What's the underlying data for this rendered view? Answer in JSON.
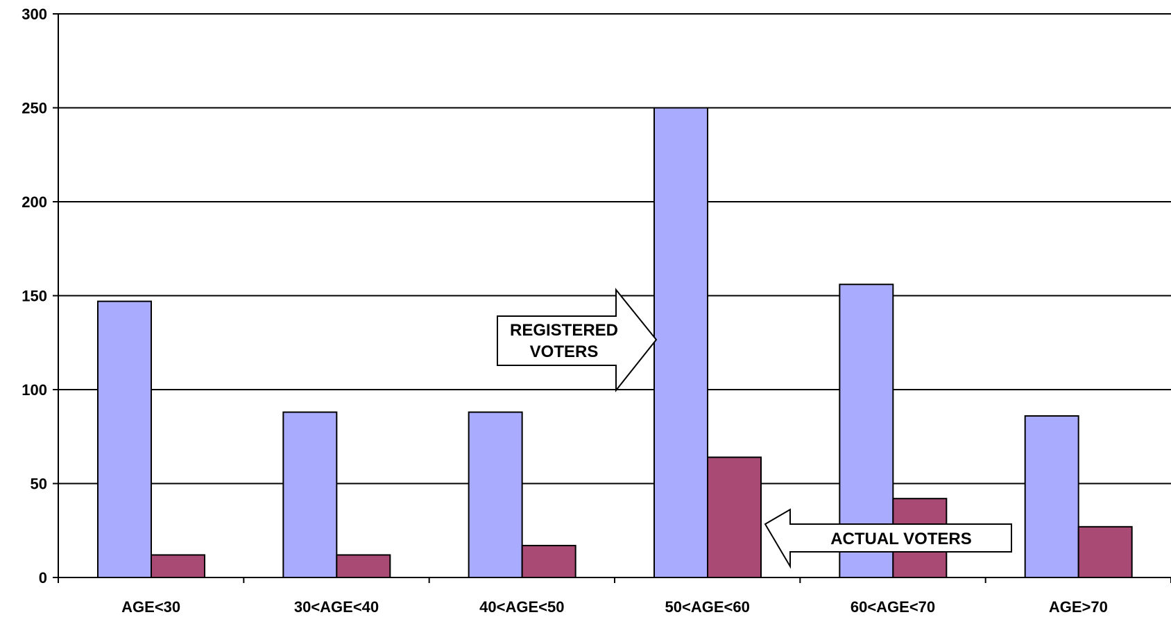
{
  "chart_data": {
    "type": "bar",
    "categories": [
      "AGE<30",
      "30<AGE<40",
      "40<AGE<50",
      "50<AGE<60",
      "60<AGE<70",
      "AGE>70"
    ],
    "series": [
      {
        "values": [
          147,
          88,
          88,
          250,
          156,
          86
        ],
        "color": "#a9abff"
      },
      {
        "values": [
          12,
          12,
          17,
          64,
          42,
          27
        ],
        "color": "#a94a74"
      }
    ],
    "ylim": [
      0,
      300
    ],
    "yticks": [
      0,
      50,
      100,
      150,
      200,
      250,
      300
    ],
    "grid": true,
    "annotations": {
      "registered": [
        "REGISTERED",
        "VOTERS"
      ],
      "actual": "ACTUAL VOTERS"
    }
  }
}
